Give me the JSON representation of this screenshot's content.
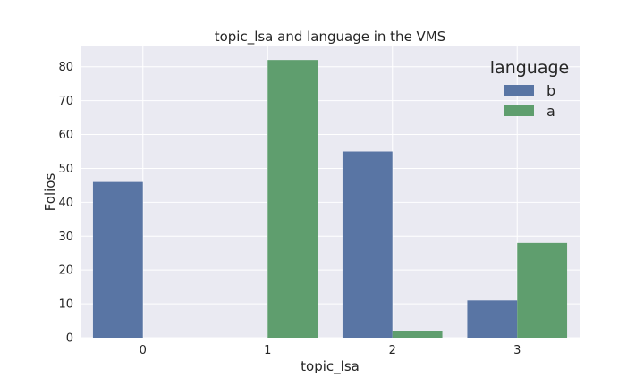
{
  "chart_data": {
    "type": "bar",
    "title": "topic_lsa and language in the VMS",
    "xlabel": "topic_lsa",
    "ylabel": "Folios",
    "categories": [
      "0",
      "1",
      "2",
      "3"
    ],
    "series": [
      {
        "name": "b",
        "values": [
          46,
          0,
          55,
          11
        ]
      },
      {
        "name": "a",
        "values": [
          0,
          82,
          2,
          28
        ]
      }
    ],
    "ylim": [
      0,
      86
    ],
    "yticks": [
      "0",
      "10",
      "20",
      "30",
      "40",
      "50",
      "60",
      "70",
      "80"
    ],
    "legend": {
      "title": "language",
      "position": "top-right"
    },
    "grid": true,
    "colors": {
      "b": "#5975a4",
      "a": "#5f9e6e",
      "background": "#eaeaf2",
      "grid": "#ffffff"
    }
  }
}
